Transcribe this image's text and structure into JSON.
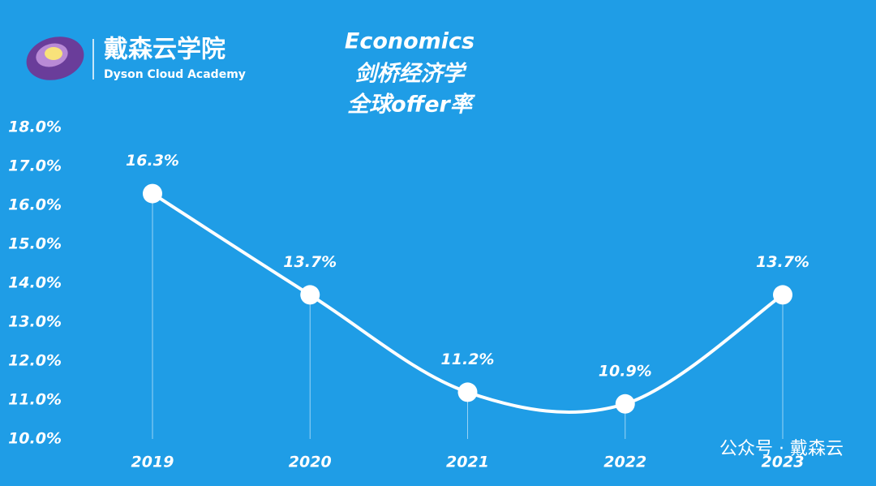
{
  "chart_data": {
    "type": "line",
    "title": [
      "Economics",
      "剑桥经济学",
      "全球offer率"
    ],
    "categories": [
      "2019",
      "2020",
      "2021",
      "2022",
      "2023"
    ],
    "values": [
      16.3,
      13.7,
      11.2,
      10.9,
      13.7
    ],
    "value_labels": [
      "16.3%",
      "13.7%",
      "11.2%",
      "10.9%",
      "13.7%"
    ],
    "color": "#ffffff",
    "smooth": true,
    "ylim": [
      10,
      18
    ],
    "yticks": [
      {
        "value": 10,
        "label": "10.0%"
      },
      {
        "value": 11,
        "label": "11.0%"
      },
      {
        "value": 12,
        "label": "12.0%"
      },
      {
        "value": 13,
        "label": "13.0%"
      },
      {
        "value": 14,
        "label": "14.0%"
      },
      {
        "value": 15,
        "label": "15.0%"
      },
      {
        "value": 16,
        "label": "16.0%"
      },
      {
        "value": 17,
        "label": "17.0%"
      },
      {
        "value": 18,
        "label": "18.0%"
      }
    ]
  },
  "branding": {
    "name": "戴森云学院",
    "subtitle": "Dyson Cloud Academy"
  },
  "watermark": "公众号 · 戴森云"
}
